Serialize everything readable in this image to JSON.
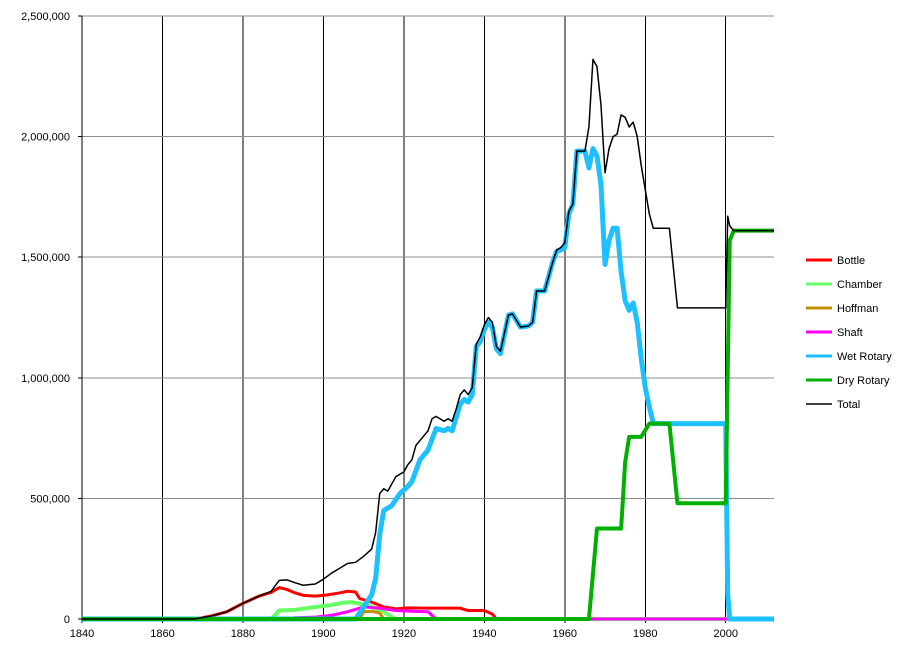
{
  "chart_data": {
    "type": "line",
    "title": "",
    "xlabel": "",
    "ylabel": "",
    "xlim": [
      1840,
      2012
    ],
    "ylim": [
      0,
      2500000
    ],
    "x_ticks": [
      1840,
      1860,
      1880,
      1900,
      1920,
      1940,
      1960,
      1980,
      2000
    ],
    "x_tick_labels": [
      "1840",
      "1860",
      "1880",
      "1900",
      "1920",
      "1940",
      "1960",
      "1980",
      "2000"
    ],
    "y_ticks": [
      0,
      500000,
      1000000,
      1500000,
      2000000,
      2500000
    ],
    "y_tick_labels": [
      "0",
      "500,000",
      "1,000,000",
      "1,500,000",
      "2,000,000",
      "2,500,000"
    ],
    "grid": true,
    "legend_position": "right",
    "series": [
      {
        "name": "Bottle",
        "color": "#ff0000",
        "stroke": 3,
        "points": [
          [
            1840,
            0
          ],
          [
            1868,
            0
          ],
          [
            1872,
            12000
          ],
          [
            1876,
            30000
          ],
          [
            1880,
            65000
          ],
          [
            1884,
            95000
          ],
          [
            1887,
            110000
          ],
          [
            1889,
            130000
          ],
          [
            1891,
            122000
          ],
          [
            1893,
            108000
          ],
          [
            1895,
            98000
          ],
          [
            1898,
            95000
          ],
          [
            1901,
            100000
          ],
          [
            1904,
            108000
          ],
          [
            1906,
            115000
          ],
          [
            1908,
            112000
          ],
          [
            1909,
            85000
          ],
          [
            1912,
            70000
          ],
          [
            1915,
            50000
          ],
          [
            1918,
            42000
          ],
          [
            1921,
            46000
          ],
          [
            1925,
            45000
          ],
          [
            1930,
            45000
          ],
          [
            1934,
            45000
          ],
          [
            1936,
            35000
          ],
          [
            1940,
            35000
          ],
          [
            1942,
            20000
          ],
          [
            1943,
            0
          ],
          [
            2012,
            0
          ]
        ]
      },
      {
        "name": "Chamber",
        "color": "#66ff66",
        "stroke": 4,
        "points": [
          [
            1840,
            0
          ],
          [
            1887,
            0
          ],
          [
            1889,
            35000
          ],
          [
            1893,
            38000
          ],
          [
            1896,
            45000
          ],
          [
            1899,
            52000
          ],
          [
            1902,
            58000
          ],
          [
            1905,
            68000
          ],
          [
            1907,
            70000
          ],
          [
            1910,
            60000
          ],
          [
            1913,
            45000
          ],
          [
            1915,
            30000
          ],
          [
            1917,
            8000
          ],
          [
            1918,
            0
          ],
          [
            2012,
            0
          ]
        ]
      },
      {
        "name": "Hoffman",
        "color": "#c09000",
        "stroke": 3,
        "points": [
          [
            1840,
            0
          ],
          [
            1909,
            0
          ],
          [
            1910,
            30000
          ],
          [
            1912,
            32000
          ],
          [
            1914,
            25000
          ],
          [
            1915,
            0
          ],
          [
            2012,
            0
          ]
        ]
      },
      {
        "name": "Shaft",
        "color": "#ff00ff",
        "stroke": 3,
        "points": [
          [
            1840,
            0
          ],
          [
            1890,
            0
          ],
          [
            1893,
            5000
          ],
          [
            1898,
            8000
          ],
          [
            1902,
            15000
          ],
          [
            1906,
            30000
          ],
          [
            1910,
            50000
          ],
          [
            1914,
            45000
          ],
          [
            1918,
            35000
          ],
          [
            1922,
            32000
          ],
          [
            1926,
            30000
          ],
          [
            1928,
            0
          ],
          [
            2012,
            0
          ]
        ]
      },
      {
        "name": "Wet Rotary",
        "color": "#1ec0ff",
        "stroke": 5,
        "points": [
          [
            1840,
            0
          ],
          [
            1908,
            0
          ],
          [
            1910,
            50000
          ],
          [
            1912,
            100000
          ],
          [
            1913,
            170000
          ],
          [
            1914,
            350000
          ],
          [
            1915,
            450000
          ],
          [
            1917,
            470000
          ],
          [
            1919,
            520000
          ],
          [
            1921,
            550000
          ],
          [
            1922,
            570000
          ],
          [
            1924,
            660000
          ],
          [
            1926,
            700000
          ],
          [
            1928,
            790000
          ],
          [
            1930,
            780000
          ],
          [
            1931,
            790000
          ],
          [
            1932,
            780000
          ],
          [
            1934,
            890000
          ],
          [
            1935,
            910000
          ],
          [
            1936,
            900000
          ],
          [
            1937,
            930000
          ],
          [
            1938,
            1130000
          ],
          [
            1939,
            1150000
          ],
          [
            1940,
            1200000
          ],
          [
            1941,
            1230000
          ],
          [
            1942,
            1210000
          ],
          [
            1943,
            1120000
          ],
          [
            1944,
            1100000
          ],
          [
            1946,
            1260000
          ],
          [
            1947,
            1265000
          ],
          [
            1949,
            1210000
          ],
          [
            1951,
            1215000
          ],
          [
            1952,
            1230000
          ],
          [
            1953,
            1360000
          ],
          [
            1955,
            1360000
          ],
          [
            1957,
            1480000
          ],
          [
            1958,
            1525000
          ],
          [
            1959,
            1530000
          ],
          [
            1960,
            1540000
          ],
          [
            1961,
            1680000
          ],
          [
            1962,
            1720000
          ],
          [
            1963,
            1940000
          ],
          [
            1965,
            1940000
          ],
          [
            1966,
            1870000
          ],
          [
            1967,
            1950000
          ],
          [
            1968,
            1920000
          ],
          [
            1969,
            1800000
          ],
          [
            1970,
            1470000
          ],
          [
            1971,
            1570000
          ],
          [
            1972,
            1620000
          ],
          [
            1973,
            1620000
          ],
          [
            1974,
            1440000
          ],
          [
            1975,
            1320000
          ],
          [
            1976,
            1280000
          ],
          [
            1977,
            1310000
          ],
          [
            1978,
            1230000
          ],
          [
            1979,
            1080000
          ],
          [
            1980,
            960000
          ],
          [
            1981,
            880000
          ],
          [
            1982,
            810000
          ],
          [
            1984,
            810000
          ],
          [
            2000,
            810000
          ],
          [
            2000.5,
            100000
          ],
          [
            2001,
            0
          ],
          [
            2012,
            0
          ]
        ]
      },
      {
        "name": "Dry Rotary",
        "color": "#00b000",
        "stroke": 4,
        "points": [
          [
            1840,
            0
          ],
          [
            1966,
            0
          ],
          [
            1968,
            375000
          ],
          [
            1974,
            375000
          ],
          [
            1975,
            650000
          ],
          [
            1976,
            755000
          ],
          [
            1979,
            755000
          ],
          [
            1981,
            810000
          ],
          [
            1986,
            810000
          ],
          [
            1988,
            480000
          ],
          [
            1999,
            480000
          ],
          [
            2000,
            480000
          ],
          [
            2001,
            1570000
          ],
          [
            2002,
            1610000
          ],
          [
            2012,
            1610000
          ]
        ]
      },
      {
        "name": "Total",
        "color": "#000000",
        "stroke": 1.5,
        "points": [
          [
            1840,
            0
          ],
          [
            1868,
            0
          ],
          [
            1872,
            12000
          ],
          [
            1876,
            30000
          ],
          [
            1880,
            65000
          ],
          [
            1884,
            95000
          ],
          [
            1887,
            115000
          ],
          [
            1889,
            160000
          ],
          [
            1891,
            162000
          ],
          [
            1893,
            150000
          ],
          [
            1895,
            140000
          ],
          [
            1898,
            145000
          ],
          [
            1900,
            165000
          ],
          [
            1902,
            190000
          ],
          [
            1904,
            210000
          ],
          [
            1906,
            230000
          ],
          [
            1908,
            235000
          ],
          [
            1910,
            260000
          ],
          [
            1912,
            290000
          ],
          [
            1913,
            360000
          ],
          [
            1914,
            520000
          ],
          [
            1915,
            540000
          ],
          [
            1916,
            530000
          ],
          [
            1918,
            590000
          ],
          [
            1920,
            610000
          ],
          [
            1921,
            640000
          ],
          [
            1922,
            660000
          ],
          [
            1923,
            720000
          ],
          [
            1925,
            760000
          ],
          [
            1926,
            780000
          ],
          [
            1927,
            830000
          ],
          [
            1928,
            840000
          ],
          [
            1930,
            820000
          ],
          [
            1931,
            830000
          ],
          [
            1932,
            820000
          ],
          [
            1933,
            870000
          ],
          [
            1934,
            930000
          ],
          [
            1935,
            950000
          ],
          [
            1936,
            930000
          ],
          [
            1937,
            960000
          ],
          [
            1938,
            1140000
          ],
          [
            1939,
            1170000
          ],
          [
            1940,
            1220000
          ],
          [
            1941,
            1250000
          ],
          [
            1942,
            1230000
          ],
          [
            1943,
            1130000
          ],
          [
            1944,
            1110000
          ],
          [
            1946,
            1260000
          ],
          [
            1947,
            1265000
          ],
          [
            1949,
            1210000
          ],
          [
            1951,
            1215000
          ],
          [
            1952,
            1230000
          ],
          [
            1953,
            1360000
          ],
          [
            1955,
            1360000
          ],
          [
            1957,
            1480000
          ],
          [
            1958,
            1530000
          ],
          [
            1959,
            1540000
          ],
          [
            1960,
            1560000
          ],
          [
            1961,
            1690000
          ],
          [
            1962,
            1720000
          ],
          [
            1963,
            1940000
          ],
          [
            1965,
            1940000
          ],
          [
            1966,
            2040000
          ],
          [
            1967,
            2320000
          ],
          [
            1968,
            2290000
          ],
          [
            1969,
            2130000
          ],
          [
            1970,
            1850000
          ],
          [
            1971,
            1950000
          ],
          [
            1972,
            2000000
          ],
          [
            1973,
            2010000
          ],
          [
            1974,
            2090000
          ],
          [
            1975,
            2080000
          ],
          [
            1976,
            2040000
          ],
          [
            1977,
            2060000
          ],
          [
            1978,
            2000000
          ],
          [
            1979,
            1880000
          ],
          [
            1980,
            1780000
          ],
          [
            1981,
            1680000
          ],
          [
            1982,
            1620000
          ],
          [
            1986,
            1620000
          ],
          [
            1988,
            1290000
          ],
          [
            1999,
            1290000
          ],
          [
            2000,
            1290000
          ],
          [
            2000.5,
            1670000
          ],
          [
            2001,
            1630000
          ],
          [
            2002,
            1610000
          ],
          [
            2012,
            1610000
          ]
        ]
      }
    ]
  }
}
